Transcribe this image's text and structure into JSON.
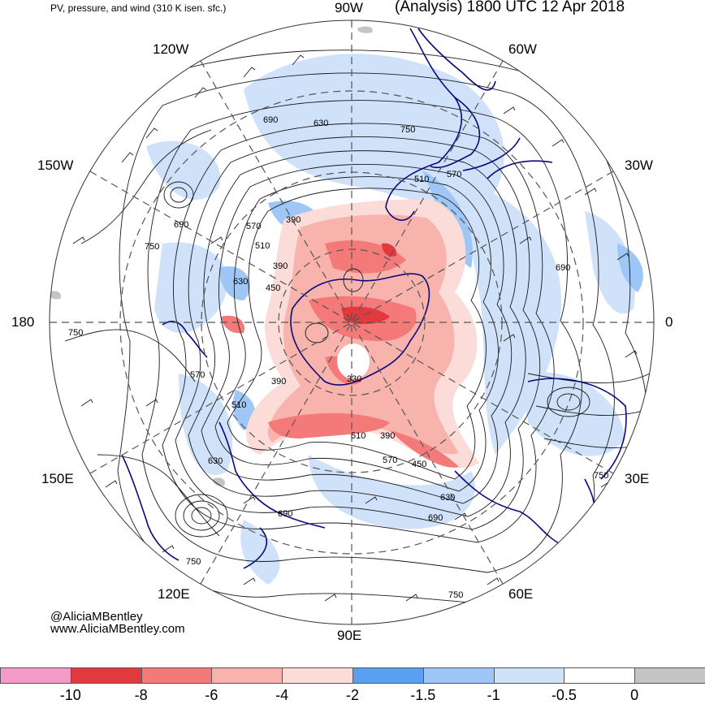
{
  "header": {
    "left_title": "PV, pressure, and wind (310 K isen. sfc.)",
    "right_title": "(Analysis) 1800 UTC 12 Apr 2018"
  },
  "lon_labels": {
    "w90": "90W",
    "w60": "60W",
    "w30": "30W",
    "e0": "0",
    "e30": "30E",
    "e60": "60E",
    "e90": "90E",
    "e120": "120E",
    "e150": "150E",
    "d180": "180",
    "w150": "150W",
    "w120": "120W"
  },
  "contour_labels": [
    "690",
    "630",
    "750",
    "570",
    "510",
    "390",
    "450",
    "330"
  ],
  "credits": {
    "handle": "@AliciaMBentley",
    "website": "www.AliciaMBentley.com"
  },
  "colorbar": {
    "colors": [
      "#f49ac8",
      "#e0393e",
      "#f47a7a",
      "#f9b3ad",
      "#fcdcd8",
      "#5aa0f0",
      "#9ec6f7",
      "#cfe2fa",
      "#ffffff",
      "#c4c4c4"
    ],
    "ticks": [
      "-10",
      "-8",
      "-6",
      "-4",
      "-2",
      "-1.5",
      "-1",
      "-0.5",
      "0"
    ]
  },
  "palette": {
    "contour": "#1a1a1a",
    "coastline": "#0a0a7a",
    "grid": "#555555"
  }
}
